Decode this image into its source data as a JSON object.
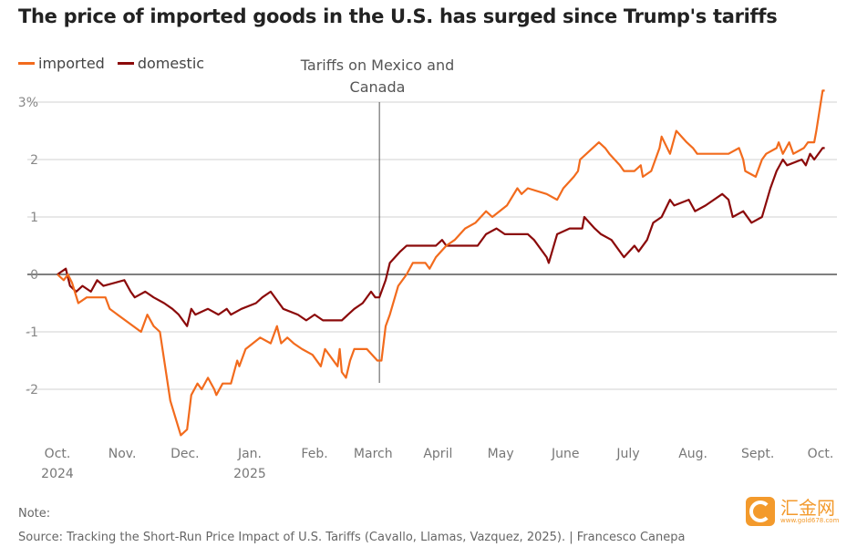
{
  "chart_data": {
    "type": "line",
    "title": "The price of imported goods in the U.S. has surged since Trump's tariffs",
    "ylim": [
      -2.9,
      3.3
    ],
    "yticks": [
      -2,
      -1,
      0,
      1,
      2,
      3
    ],
    "ytick_labels": [
      "-2",
      "-1",
      "0",
      "1",
      "2",
      "3%"
    ],
    "xlim": [
      "2024-10-01",
      "2025-10-01"
    ],
    "xticks": [
      {
        "date": "2024-10-01",
        "label": "Oct.",
        "sub": "2024"
      },
      {
        "date": "2024-11-01",
        "label": "Nov.",
        "sub": ""
      },
      {
        "date": "2024-12-01",
        "label": "Dec.",
        "sub": ""
      },
      {
        "date": "2025-01-01",
        "label": "Jan.",
        "sub": "2025"
      },
      {
        "date": "2025-02-01",
        "label": "Feb.",
        "sub": ""
      },
      {
        "date": "2025-03-01",
        "label": "March",
        "sub": ""
      },
      {
        "date": "2025-04-01",
        "label": "April",
        "sub": ""
      },
      {
        "date": "2025-05-01",
        "label": "May",
        "sub": ""
      },
      {
        "date": "2025-06-01",
        "label": "June",
        "sub": ""
      },
      {
        "date": "2025-07-01",
        "label": "July",
        "sub": ""
      },
      {
        "date": "2025-08-01",
        "label": "Aug.",
        "sub": ""
      },
      {
        "date": "2025-09-01",
        "label": "Sept.",
        "sub": ""
      },
      {
        "date": "2025-10-01",
        "label": "Oct.",
        "sub": ""
      }
    ],
    "grid": true,
    "legend_placement": "top-left",
    "annotation": {
      "date": "2025-03-04",
      "line1": "Tariffs on Mexico and",
      "line2": "Canada"
    },
    "series": [
      {
        "name": "imported",
        "color": "#f26b1d",
        "points": [
          [
            "2024-10-01",
            0
          ],
          [
            "2024-10-04",
            -0.1
          ],
          [
            "2024-10-06",
            0
          ],
          [
            "2024-10-08",
            -0.15
          ],
          [
            "2024-10-11",
            -0.5
          ],
          [
            "2024-10-15",
            -0.4
          ],
          [
            "2024-10-24",
            -0.4
          ],
          [
            "2024-10-26",
            -0.6
          ],
          [
            "2024-11-10",
            -1.0
          ],
          [
            "2024-11-13",
            -0.7
          ],
          [
            "2024-11-16",
            -0.9
          ],
          [
            "2024-11-19",
            -1.0
          ],
          [
            "2024-11-24",
            -2.2
          ],
          [
            "2024-11-29",
            -2.8
          ],
          [
            "2024-12-02",
            -2.7
          ],
          [
            "2024-12-04",
            -2.1
          ],
          [
            "2024-12-07",
            -1.9
          ],
          [
            "2024-12-09",
            -2.0
          ],
          [
            "2024-12-12",
            -1.8
          ],
          [
            "2024-12-15",
            -2.0
          ],
          [
            "2024-12-16",
            -2.1
          ],
          [
            "2024-12-19",
            -1.9
          ],
          [
            "2024-12-23",
            -1.9
          ],
          [
            "2024-12-26",
            -1.5
          ],
          [
            "2024-12-27",
            -1.6
          ],
          [
            "2024-12-30",
            -1.3
          ],
          [
            "2025-01-06",
            -1.1
          ],
          [
            "2025-01-11",
            -1.2
          ],
          [
            "2025-01-14",
            -0.9
          ],
          [
            "2025-01-16",
            -1.2
          ],
          [
            "2025-01-19",
            -1.1
          ],
          [
            "2025-01-22",
            -1.2
          ],
          [
            "2025-01-26",
            -1.3
          ],
          [
            "2025-01-31",
            -1.4
          ],
          [
            "2025-02-04",
            -1.6
          ],
          [
            "2025-02-06",
            -1.3
          ],
          [
            "2025-02-12",
            -1.6
          ],
          [
            "2025-02-13",
            -1.3
          ],
          [
            "2025-02-14",
            -1.7
          ],
          [
            "2025-02-16",
            -1.8
          ],
          [
            "2025-02-18",
            -1.5
          ],
          [
            "2025-02-20",
            -1.3
          ],
          [
            "2025-02-26",
            -1.3
          ],
          [
            "2025-03-03",
            -1.5
          ],
          [
            "2025-03-05",
            -1.5
          ],
          [
            "2025-03-07",
            -0.9
          ],
          [
            "2025-03-09",
            -0.7
          ],
          [
            "2025-03-13",
            -0.2
          ],
          [
            "2025-03-17",
            0.0
          ],
          [
            "2025-03-20",
            0.2
          ],
          [
            "2025-03-26",
            0.2
          ],
          [
            "2025-03-28",
            0.1
          ],
          [
            "2025-03-31",
            0.3
          ],
          [
            "2025-04-05",
            0.5
          ],
          [
            "2025-04-09",
            0.6
          ],
          [
            "2025-04-14",
            0.8
          ],
          [
            "2025-04-19",
            0.9
          ],
          [
            "2025-04-24",
            1.1
          ],
          [
            "2025-04-27",
            1.0
          ],
          [
            "2025-05-04",
            1.2
          ],
          [
            "2025-05-09",
            1.5
          ],
          [
            "2025-05-11",
            1.4
          ],
          [
            "2025-05-14",
            1.5
          ],
          [
            "2025-05-23",
            1.4
          ],
          [
            "2025-05-28",
            1.3
          ],
          [
            "2025-05-31",
            1.5
          ],
          [
            "2025-06-05",
            1.7
          ],
          [
            "2025-06-07",
            1.8
          ],
          [
            "2025-06-08",
            2.0
          ],
          [
            "2025-06-11",
            2.1
          ],
          [
            "2025-06-17",
            2.3
          ],
          [
            "2025-06-20",
            2.2
          ],
          [
            "2025-06-22",
            2.1
          ],
          [
            "2025-06-27",
            1.9
          ],
          [
            "2025-06-29",
            1.8
          ],
          [
            "2025-07-04",
            1.8
          ],
          [
            "2025-07-07",
            1.9
          ],
          [
            "2025-07-08",
            1.7
          ],
          [
            "2025-07-12",
            1.8
          ],
          [
            "2025-07-16",
            2.2
          ],
          [
            "2025-07-17",
            2.4
          ],
          [
            "2025-07-21",
            2.1
          ],
          [
            "2025-07-24",
            2.5
          ],
          [
            "2025-07-29",
            2.3
          ],
          [
            "2025-08-01",
            2.2
          ],
          [
            "2025-08-03",
            2.1
          ],
          [
            "2025-08-18",
            2.1
          ],
          [
            "2025-08-23",
            2.2
          ],
          [
            "2025-08-25",
            2.0
          ],
          [
            "2025-08-26",
            1.8
          ],
          [
            "2025-08-31",
            1.7
          ],
          [
            "2025-09-03",
            2.0
          ],
          [
            "2025-09-05",
            2.1
          ],
          [
            "2025-09-10",
            2.2
          ],
          [
            "2025-09-11",
            2.3
          ],
          [
            "2025-09-13",
            2.1
          ],
          [
            "2025-09-16",
            2.3
          ],
          [
            "2025-09-18",
            2.1
          ],
          [
            "2025-09-23",
            2.2
          ],
          [
            "2025-09-25",
            2.3
          ],
          [
            "2025-09-28",
            2.3
          ],
          [
            "2025-09-29",
            2.5
          ],
          [
            "2025-10-02",
            3.2
          ],
          [
            "2025-10-03",
            3.2
          ]
        ]
      },
      {
        "name": "domestic",
        "color": "#8b0a0a",
        "points": [
          [
            "2024-10-01",
            0
          ],
          [
            "2024-10-05",
            0.1
          ],
          [
            "2024-10-07",
            -0.2
          ],
          [
            "2024-10-10",
            -0.3
          ],
          [
            "2024-10-13",
            -0.2
          ],
          [
            "2024-10-17",
            -0.3
          ],
          [
            "2024-10-20",
            -0.1
          ],
          [
            "2024-10-23",
            -0.2
          ],
          [
            "2024-11-02",
            -0.1
          ],
          [
            "2024-11-05",
            -0.3
          ],
          [
            "2024-11-07",
            -0.4
          ],
          [
            "2024-11-12",
            -0.3
          ],
          [
            "2024-11-16",
            -0.4
          ],
          [
            "2024-11-21",
            -0.5
          ],
          [
            "2024-11-25",
            -0.6
          ],
          [
            "2024-11-28",
            -0.7
          ],
          [
            "2024-12-02",
            -0.9
          ],
          [
            "2024-12-04",
            -0.6
          ],
          [
            "2024-12-06",
            -0.7
          ],
          [
            "2024-12-12",
            -0.6
          ],
          [
            "2024-12-17",
            -0.7
          ],
          [
            "2024-12-21",
            -0.6
          ],
          [
            "2024-12-23",
            -0.7
          ],
          [
            "2024-12-28",
            -0.6
          ],
          [
            "2025-01-04",
            -0.5
          ],
          [
            "2025-01-07",
            -0.4
          ],
          [
            "2025-01-11",
            -0.3
          ],
          [
            "2025-01-15",
            -0.5
          ],
          [
            "2025-01-17",
            -0.6
          ],
          [
            "2025-01-24",
            -0.7
          ],
          [
            "2025-01-28",
            -0.8
          ],
          [
            "2025-02-01",
            -0.7
          ],
          [
            "2025-02-05",
            -0.8
          ],
          [
            "2025-02-14",
            -0.8
          ],
          [
            "2025-02-17",
            -0.7
          ],
          [
            "2025-02-20",
            -0.6
          ],
          [
            "2025-02-24",
            -0.5
          ],
          [
            "2025-02-28",
            -0.3
          ],
          [
            "2025-03-02",
            -0.4
          ],
          [
            "2025-03-04",
            -0.4
          ],
          [
            "2025-03-07",
            -0.1
          ],
          [
            "2025-03-09",
            0.2
          ],
          [
            "2025-03-14",
            0.4
          ],
          [
            "2025-03-17",
            0.5
          ],
          [
            "2025-03-31",
            0.5
          ],
          [
            "2025-04-03",
            0.6
          ],
          [
            "2025-04-05",
            0.5
          ],
          [
            "2025-04-20",
            0.5
          ],
          [
            "2025-04-24",
            0.7
          ],
          [
            "2025-04-29",
            0.8
          ],
          [
            "2025-05-03",
            0.7
          ],
          [
            "2025-05-14",
            0.7
          ],
          [
            "2025-05-17",
            0.6
          ],
          [
            "2025-05-23",
            0.3
          ],
          [
            "2025-05-24",
            0.2
          ],
          [
            "2025-05-28",
            0.7
          ],
          [
            "2025-06-03",
            0.8
          ],
          [
            "2025-06-09",
            0.8
          ],
          [
            "2025-06-10",
            1.0
          ],
          [
            "2025-06-15",
            0.8
          ],
          [
            "2025-06-18",
            0.7
          ],
          [
            "2025-06-23",
            0.6
          ],
          [
            "2025-06-29",
            0.3
          ],
          [
            "2025-07-04",
            0.5
          ],
          [
            "2025-07-06",
            0.4
          ],
          [
            "2025-07-10",
            0.6
          ],
          [
            "2025-07-13",
            0.9
          ],
          [
            "2025-07-17",
            1.0
          ],
          [
            "2025-07-21",
            1.3
          ],
          [
            "2025-07-23",
            1.2
          ],
          [
            "2025-07-30",
            1.3
          ],
          [
            "2025-08-02",
            1.1
          ],
          [
            "2025-08-07",
            1.2
          ],
          [
            "2025-08-15",
            1.4
          ],
          [
            "2025-08-18",
            1.3
          ],
          [
            "2025-08-20",
            1.0
          ],
          [
            "2025-08-25",
            1.1
          ],
          [
            "2025-08-29",
            0.9
          ],
          [
            "2025-09-03",
            1.0
          ],
          [
            "2025-09-07",
            1.5
          ],
          [
            "2025-09-10",
            1.8
          ],
          [
            "2025-09-13",
            2.0
          ],
          [
            "2025-09-15",
            1.9
          ],
          [
            "2025-09-22",
            2.0
          ],
          [
            "2025-09-24",
            1.9
          ],
          [
            "2025-09-26",
            2.1
          ],
          [
            "2025-09-28",
            2.0
          ],
          [
            "2025-10-02",
            2.2
          ],
          [
            "2025-10-03",
            2.2
          ]
        ]
      }
    ]
  },
  "footer": {
    "note": "Note:",
    "source": "Source: Tracking the Short-Run Price Impact of U.S. Tariffs (Cavallo, Llamas, Vazquez, 2025). | Francesco Canepa"
  },
  "watermark": {
    "text": "汇金网",
    "sub": "www.gold678.com"
  }
}
